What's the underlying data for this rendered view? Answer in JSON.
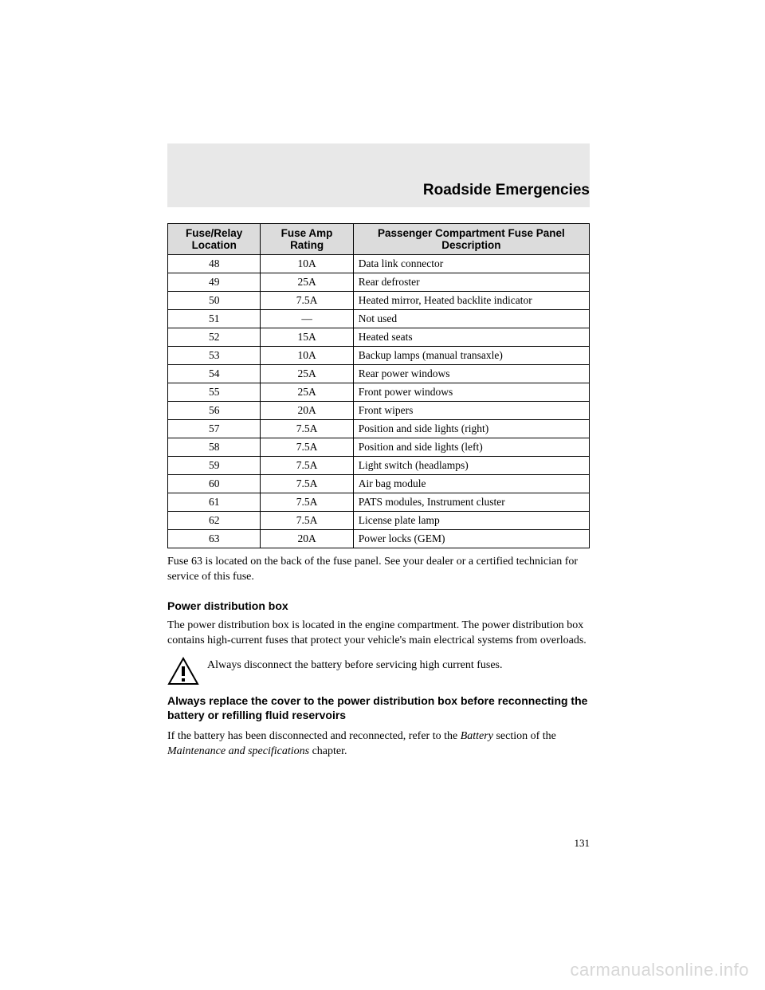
{
  "chapter_title": "Roadside Emergencies",
  "fuse_table": {
    "columns": [
      "Fuse/Relay Location",
      "Fuse Amp Rating",
      "Passenger Compartment Fuse Panel Description"
    ],
    "col_widths_pct": [
      22,
      22,
      56
    ],
    "header_bg": "#dcdcdc",
    "border_color": "#000000",
    "rows": [
      [
        "48",
        "10A",
        "Data link connector"
      ],
      [
        "49",
        "25A",
        "Rear defroster"
      ],
      [
        "50",
        "7.5A",
        "Heated mirror, Heated backlite indicator"
      ],
      [
        "51",
        "—",
        "Not used"
      ],
      [
        "52",
        "15A",
        "Heated seats"
      ],
      [
        "53",
        "10A",
        "Backup lamps (manual transaxle)"
      ],
      [
        "54",
        "25A",
        "Rear power windows"
      ],
      [
        "55",
        "25A",
        "Front power windows"
      ],
      [
        "56",
        "20A",
        "Front wipers"
      ],
      [
        "57",
        "7.5A",
        "Position and side lights (right)"
      ],
      [
        "58",
        "7.5A",
        "Position and side lights (left)"
      ],
      [
        "59",
        "7.5A",
        "Light switch (headlamps)"
      ],
      [
        "60",
        "7.5A",
        "Air bag module"
      ],
      [
        "61",
        "7.5A",
        "PATS modules, Instrument cluster"
      ],
      [
        "62",
        "7.5A",
        "License plate lamp"
      ],
      [
        "63",
        "20A",
        "Power locks (GEM)"
      ]
    ]
  },
  "note_after_table": "Fuse 63 is located on the back of the fuse panel. See your dealer or a certified technician for service of this fuse.",
  "subhead_pdb": "Power distribution box",
  "pdb_paragraph": "The power distribution box is located in the engine compartment. The power distribution box contains high-current fuses that protect your vehicle's main electrical systems from overloads.",
  "warning_text": "Always disconnect the battery before servicing high current fuses.",
  "bold_paragraph": "Always replace the cover to the power distribution box before reconnecting the battery or refilling fluid reservoirs",
  "battery_para_pre": "If the battery has been disconnected and reconnected, refer to the ",
  "battery_para_italic1": "Battery",
  "battery_para_mid": " section of the ",
  "battery_para_italic2": "Maintenance and specifications",
  "battery_para_post": " chapter.",
  "page_number": "131",
  "watermark": "carmanualsonline.info",
  "colors": {
    "header_band": "#e8e8e8",
    "watermark": "#d7d7d7",
    "text": "#000000"
  }
}
